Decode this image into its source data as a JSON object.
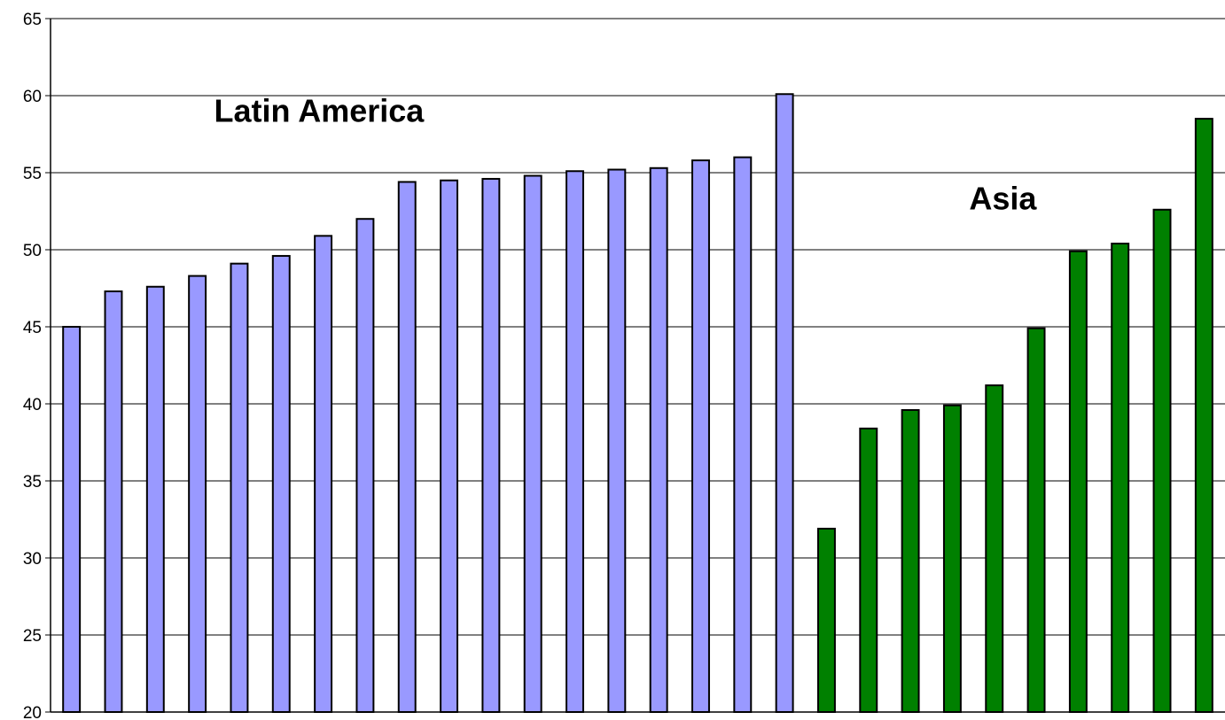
{
  "chart_data": {
    "type": "bar",
    "ylim": [
      20,
      65
    ],
    "yticks": [
      20,
      25,
      30,
      35,
      40,
      45,
      50,
      55,
      60,
      65
    ],
    "grid": true,
    "legend": "none",
    "series": [
      {
        "color": "#9999ff",
        "values": [
          45.0,
          47.3,
          47.6,
          48.3,
          49.1,
          49.6,
          50.9,
          52.0,
          54.4,
          54.5,
          54.6,
          54.8,
          55.1,
          55.2,
          55.3,
          55.8,
          56.0,
          60.1
        ]
      },
      {
        "color": "#008000",
        "values": [
          31.9,
          38.4,
          39.6,
          39.9,
          41.2,
          44.9,
          49.9,
          50.4,
          52.6,
          58.5
        ]
      }
    ],
    "annotations": [
      {
        "text": "Latin America",
        "x_bar": 3.4,
        "y": 59.0
      },
      {
        "text": "Asia",
        "x_bar": 21.4,
        "y": 53.3
      }
    ]
  }
}
